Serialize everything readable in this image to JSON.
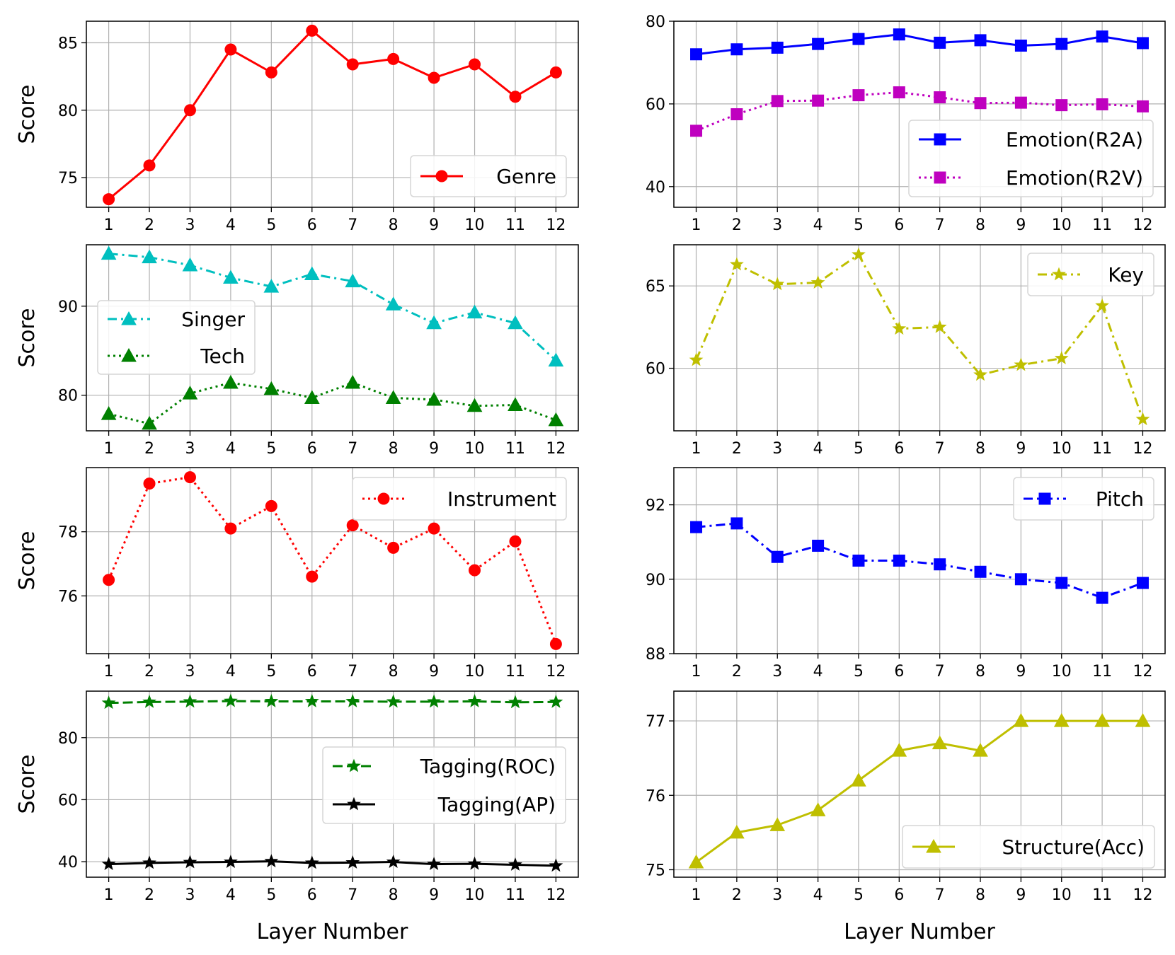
{
  "chart_data": [
    {
      "type": "line",
      "x": [
        1,
        2,
        3,
        4,
        5,
        6,
        7,
        8,
        9,
        10,
        11,
        12
      ],
      "ylabel": "Score",
      "xlabel": "",
      "ylim": [
        72.8,
        86.6
      ],
      "yticks": [
        75,
        80,
        85
      ],
      "legend_loc": "lower-right",
      "series": [
        {
          "name": "Genre",
          "values": [
            73.4,
            75.9,
            80.0,
            84.5,
            82.8,
            85.9,
            83.4,
            83.8,
            82.4,
            83.4,
            81.0,
            82.8
          ],
          "color": "#ff0000",
          "marker": "circle",
          "linestyle": "solid"
        }
      ]
    },
    {
      "type": "line",
      "x": [
        1,
        2,
        3,
        4,
        5,
        6,
        7,
        8,
        9,
        10,
        11,
        12
      ],
      "ylabel": "",
      "xlabel": "",
      "ylim": [
        35,
        80
      ],
      "yticks": [
        40,
        60,
        80
      ],
      "legend_loc": "lower-right",
      "series": [
        {
          "name": "Emotion(R2A)",
          "values": [
            72.0,
            73.2,
            73.6,
            74.5,
            75.7,
            76.8,
            74.8,
            75.4,
            74.1,
            74.5,
            76.3,
            74.7
          ],
          "color": "#0000ff",
          "marker": "square",
          "linestyle": "solid"
        },
        {
          "name": "Emotion(R2V)",
          "values": [
            53.5,
            57.5,
            60.7,
            60.8,
            62.1,
            62.8,
            61.6,
            60.2,
            60.3,
            59.7,
            59.9,
            59.4
          ],
          "color": "#bf00bf",
          "marker": "square",
          "linestyle": "dotted"
        }
      ]
    },
    {
      "type": "line",
      "x": [
        1,
        2,
        3,
        4,
        5,
        6,
        7,
        8,
        9,
        10,
        11,
        12
      ],
      "ylabel": "Score",
      "xlabel": "",
      "ylim": [
        76,
        96.9
      ],
      "yticks": [
        80,
        90
      ],
      "legend_loc": "center-left",
      "series": [
        {
          "name": "Singer",
          "values": [
            95.9,
            95.5,
            94.6,
            93.2,
            92.2,
            93.6,
            92.8,
            90.2,
            88.1,
            89.3,
            88.1,
            83.9
          ],
          "color": "#00bfbf",
          "marker": "triangle",
          "linestyle": "dashdot"
        },
        {
          "name": "Tech",
          "values": [
            77.9,
            76.8,
            80.2,
            81.4,
            80.7,
            79.7,
            81.4,
            79.7,
            79.5,
            78.8,
            78.9,
            77.2
          ],
          "color": "#008000",
          "marker": "triangle",
          "linestyle": "dotted"
        }
      ]
    },
    {
      "type": "line",
      "x": [
        1,
        2,
        3,
        4,
        5,
        6,
        7,
        8,
        9,
        10,
        11,
        12
      ],
      "ylabel": "",
      "xlabel": "",
      "ylim": [
        56.2,
        67.5
      ],
      "yticks": [
        60,
        65
      ],
      "legend_loc": "upper-right",
      "series": [
        {
          "name": "Key",
          "values": [
            60.5,
            66.3,
            65.1,
            65.2,
            66.9,
            62.4,
            62.5,
            59.6,
            60.2,
            60.6,
            63.8,
            56.9
          ],
          "color": "#bfbf00",
          "marker": "star",
          "linestyle": "dashdot"
        }
      ]
    },
    {
      "type": "line",
      "x": [
        1,
        2,
        3,
        4,
        5,
        6,
        7,
        8,
        9,
        10,
        11,
        12
      ],
      "ylabel": "Score",
      "xlabel": "",
      "ylim": [
        74.2,
        80.0
      ],
      "yticks": [
        76,
        78
      ],
      "legend_loc": "upper-right",
      "series": [
        {
          "name": "Instrument",
          "values": [
            76.5,
            79.5,
            79.7,
            78.1,
            78.8,
            76.6,
            78.2,
            77.5,
            78.1,
            76.8,
            77.7,
            74.5
          ],
          "color": "#ff0000",
          "marker": "circle",
          "linestyle": "dotted"
        }
      ]
    },
    {
      "type": "line",
      "x": [
        1,
        2,
        3,
        4,
        5,
        6,
        7,
        8,
        9,
        10,
        11,
        12
      ],
      "ylabel": "",
      "xlabel": "",
      "ylim": [
        88,
        93
      ],
      "yticks": [
        88,
        90,
        92
      ],
      "legend_loc": "upper-right",
      "series": [
        {
          "name": "Pitch",
          "values": [
            91.4,
            91.5,
            90.6,
            90.9,
            90.5,
            90.5,
            90.4,
            90.2,
            90.0,
            89.9,
            89.5,
            89.9
          ],
          "color": "#0000ff",
          "marker": "square",
          "linestyle": "dashdot"
        }
      ]
    },
    {
      "type": "line",
      "x": [
        1,
        2,
        3,
        4,
        5,
        6,
        7,
        8,
        9,
        10,
        11,
        12
      ],
      "ylabel": "Score",
      "xlabel": "Layer Number",
      "ylim": [
        35,
        95
      ],
      "yticks": [
        40,
        60,
        80
      ],
      "legend_loc": "center-right",
      "series": [
        {
          "name": "Tagging(ROC)",
          "values": [
            91.2,
            91.5,
            91.6,
            91.8,
            91.7,
            91.7,
            91.7,
            91.6,
            91.6,
            91.7,
            91.4,
            91.5
          ],
          "color": "#008000",
          "marker": "star",
          "linestyle": "dashed"
        },
        {
          "name": "Tagging(AP)",
          "values": [
            39.2,
            39.6,
            39.8,
            39.9,
            40.1,
            39.6,
            39.7,
            39.9,
            39.2,
            39.3,
            39.0,
            38.7
          ],
          "color": "#000000",
          "marker": "star",
          "linestyle": "solid"
        }
      ]
    },
    {
      "type": "line",
      "x": [
        1,
        2,
        3,
        4,
        5,
        6,
        7,
        8,
        9,
        10,
        11,
        12
      ],
      "ylabel": "",
      "xlabel": "Layer Number",
      "ylim": [
        74.9,
        77.4
      ],
      "yticks": [
        75,
        76,
        77
      ],
      "legend_loc": "lower-right",
      "series": [
        {
          "name": "Structure(Acc)",
          "values": [
            75.1,
            75.5,
            75.6,
            75.8,
            76.2,
            76.6,
            76.7,
            76.6,
            77.0,
            77.0,
            77.0,
            77.0
          ],
          "color": "#bfbf00",
          "marker": "triangle",
          "linestyle": "solid"
        }
      ]
    }
  ]
}
